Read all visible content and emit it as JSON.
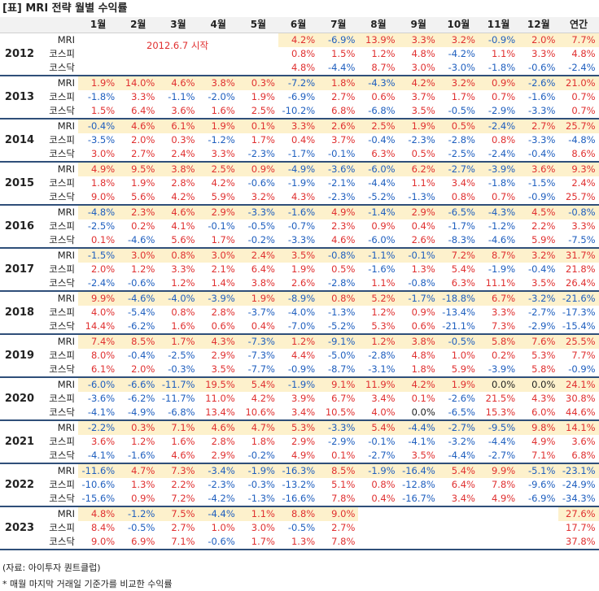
{
  "title": "[표] MRI 전략 월별 수익률",
  "header": [
    "1월",
    "2월",
    "3월",
    "4월",
    "5월",
    "6월",
    "7월",
    "8월",
    "9월",
    "10월",
    "11월",
    "12월",
    "연간"
  ],
  "row_labels": [
    "MRI",
    "코스피",
    "코스닥"
  ],
  "start_note": "2012.6.7 시작",
  "years": [
    {
      "year": "2012",
      "rows": [
        [
          "",
          "",
          "",
          "",
          "",
          "4.2%",
          "-6.9%",
          "13.9%",
          "3.3%",
          "3.2%",
          "-0.9%",
          "2.0%",
          "7.7%"
        ],
        [
          "",
          "",
          "",
          "",
          "",
          "0.8%",
          "1.5%",
          "1.2%",
          "4.8%",
          "-4.2%",
          "1.1%",
          "3.3%",
          "4.8%"
        ],
        [
          "",
          "",
          "",
          "",
          "",
          "4.8%",
          "-4.4%",
          "8.7%",
          "3.0%",
          "-3.0%",
          "-1.8%",
          "-0.6%",
          "-2.4%"
        ]
      ]
    },
    {
      "year": "2013",
      "rows": [
        [
          "1.9%",
          "14.0%",
          "4.6%",
          "3.8%",
          "0.3%",
          "-7.2%",
          "1.8%",
          "-4.3%",
          "4.2%",
          "3.2%",
          "0.9%",
          "-2.6%",
          "21.0%"
        ],
        [
          "-1.8%",
          "3.3%",
          "-1.1%",
          "-2.0%",
          "1.9%",
          "-6.9%",
          "2.7%",
          "0.6%",
          "3.7%",
          "1.7%",
          "0.7%",
          "-1.6%",
          "0.7%"
        ],
        [
          "1.5%",
          "6.4%",
          "3.6%",
          "1.6%",
          "2.5%",
          "-10.2%",
          "6.8%",
          "-6.8%",
          "3.5%",
          "-0.5%",
          "-2.9%",
          "-3.3%",
          "0.7%"
        ]
      ]
    },
    {
      "year": "2014",
      "rows": [
        [
          "-0.4%",
          "4.6%",
          "6.1%",
          "1.9%",
          "0.1%",
          "3.3%",
          "2.6%",
          "2.5%",
          "1.9%",
          "0.5%",
          "-2.4%",
          "2.7%",
          "25.7%"
        ],
        [
          "-3.5%",
          "2.0%",
          "0.3%",
          "-1.2%",
          "1.7%",
          "0.4%",
          "3.7%",
          "-0.4%",
          "-2.3%",
          "-2.8%",
          "0.8%",
          "-3.3%",
          "-4.8%"
        ],
        [
          "3.0%",
          "2.7%",
          "2.4%",
          "3.3%",
          "-2.3%",
          "-1.7%",
          "-0.1%",
          "6.3%",
          "0.5%",
          "-2.5%",
          "-2.4%",
          "-0.4%",
          "8.6%"
        ]
      ]
    },
    {
      "year": "2015",
      "rows": [
        [
          "4.9%",
          "9.5%",
          "3.8%",
          "2.5%",
          "0.9%",
          "-4.9%",
          "-3.6%",
          "-6.0%",
          "6.2%",
          "-2.7%",
          "-3.9%",
          "3.6%",
          "9.3%"
        ],
        [
          "1.8%",
          "1.9%",
          "2.8%",
          "4.2%",
          "-0.6%",
          "-1.9%",
          "-2.1%",
          "-4.4%",
          "1.1%",
          "3.4%",
          "-1.8%",
          "-1.5%",
          "2.4%"
        ],
        [
          "9.0%",
          "5.6%",
          "4.2%",
          "5.9%",
          "3.2%",
          "4.3%",
          "-2.3%",
          "-5.2%",
          "-1.3%",
          "0.8%",
          "0.7%",
          "-0.9%",
          "25.7%"
        ]
      ]
    },
    {
      "year": "2016",
      "rows": [
        [
          "-4.8%",
          "2.3%",
          "4.6%",
          "2.9%",
          "-3.3%",
          "-1.6%",
          "4.9%",
          "-1.4%",
          "2.9%",
          "-6.5%",
          "-4.3%",
          "4.5%",
          "-0.8%"
        ],
        [
          "-2.5%",
          "0.2%",
          "4.1%",
          "-0.1%",
          "-0.5%",
          "-0.7%",
          "2.3%",
          "0.9%",
          "0.4%",
          "-1.7%",
          "-1.2%",
          "2.2%",
          "3.3%"
        ],
        [
          "0.1%",
          "-4.6%",
          "5.6%",
          "1.7%",
          "-0.2%",
          "-3.3%",
          "4.6%",
          "-6.0%",
          "2.6%",
          "-8.3%",
          "-4.6%",
          "5.9%",
          "-7.5%"
        ]
      ]
    },
    {
      "year": "2017",
      "rows": [
        [
          "-1.5%",
          "3.0%",
          "0.8%",
          "3.0%",
          "2.4%",
          "3.5%",
          "-0.8%",
          "-1.1%",
          "-0.1%",
          "7.2%",
          "8.7%",
          "3.2%",
          "31.7%"
        ],
        [
          "2.0%",
          "1.2%",
          "3.3%",
          "2.1%",
          "6.4%",
          "1.9%",
          "0.5%",
          "-1.6%",
          "1.3%",
          "5.4%",
          "-1.9%",
          "-0.4%",
          "21.8%"
        ],
        [
          "-2.4%",
          "-0.6%",
          "1.2%",
          "1.4%",
          "3.8%",
          "2.6%",
          "-2.8%",
          "1.1%",
          "-0.8%",
          "6.3%",
          "11.1%",
          "3.5%",
          "26.4%"
        ]
      ]
    },
    {
      "year": "2018",
      "rows": [
        [
          "9.9%",
          "-4.6%",
          "-4.0%",
          "-3.9%",
          "1.9%",
          "-8.9%",
          "0.8%",
          "5.2%",
          "-1.7%",
          "-18.8%",
          "6.7%",
          "-3.2%",
          "-21.6%"
        ],
        [
          "4.0%",
          "-5.4%",
          "0.8%",
          "2.8%",
          "-3.7%",
          "-4.0%",
          "-1.3%",
          "1.2%",
          "0.9%",
          "-13.4%",
          "3.3%",
          "-2.7%",
          "-17.3%"
        ],
        [
          "14.4%",
          "-6.2%",
          "1.6%",
          "0.6%",
          "0.4%",
          "-7.0%",
          "-5.2%",
          "5.3%",
          "0.6%",
          "-21.1%",
          "7.3%",
          "-2.9%",
          "-15.4%"
        ]
      ]
    },
    {
      "year": "2019",
      "rows": [
        [
          "7.4%",
          "8.5%",
          "1.7%",
          "4.3%",
          "-7.3%",
          "1.2%",
          "-9.1%",
          "1.2%",
          "3.8%",
          "-0.5%",
          "5.8%",
          "7.6%",
          "25.5%"
        ],
        [
          "8.0%",
          "-0.4%",
          "-2.5%",
          "2.9%",
          "-7.3%",
          "4.4%",
          "-5.0%",
          "-2.8%",
          "4.8%",
          "1.0%",
          "0.2%",
          "5.3%",
          "7.7%"
        ],
        [
          "6.1%",
          "2.0%",
          "-0.3%",
          "3.5%",
          "-7.7%",
          "-0.9%",
          "-8.7%",
          "-3.1%",
          "1.8%",
          "5.9%",
          "-3.9%",
          "5.8%",
          "-0.9%"
        ]
      ]
    },
    {
      "year": "2020",
      "rows": [
        [
          "-6.0%",
          "-6.6%",
          "-11.7%",
          "19.5%",
          "5.4%",
          "-1.9%",
          "9.1%",
          "11.9%",
          "4.2%",
          "1.9%",
          "0.0%",
          "0.0%",
          "24.1%"
        ],
        [
          "-3.6%",
          "-6.2%",
          "-11.7%",
          "11.0%",
          "4.2%",
          "3.9%",
          "6.7%",
          "3.4%",
          "0.1%",
          "-2.6%",
          "21.5%",
          "4.3%",
          "30.8%"
        ],
        [
          "-4.1%",
          "-4.9%",
          "-6.8%",
          "13.4%",
          "10.6%",
          "3.4%",
          "10.5%",
          "4.0%",
          "0.0%",
          "-6.5%",
          "15.3%",
          "6.0%",
          "44.6%"
        ]
      ]
    },
    {
      "year": "2021",
      "rows": [
        [
          "-2.2%",
          "0.3%",
          "7.1%",
          "4.6%",
          "4.7%",
          "5.3%",
          "-3.3%",
          "5.4%",
          "-4.4%",
          "-2.7%",
          "-9.5%",
          "9.8%",
          "14.1%"
        ],
        [
          "3.6%",
          "1.2%",
          "1.6%",
          "2.8%",
          "1.8%",
          "2.9%",
          "-2.9%",
          "-0.1%",
          "-4.1%",
          "-3.2%",
          "-4.4%",
          "4.9%",
          "3.6%"
        ],
        [
          "-4.1%",
          "-1.6%",
          "4.6%",
          "2.9%",
          "-0.2%",
          "4.9%",
          "0.1%",
          "-2.7%",
          "3.5%",
          "-4.4%",
          "-2.7%",
          "7.1%",
          "6.8%"
        ]
      ]
    },
    {
      "year": "2022",
      "rows": [
        [
          "-11.6%",
          "4.7%",
          "7.3%",
          "-3.4%",
          "-1.9%",
          "-16.3%",
          "8.5%",
          "-1.9%",
          "-16.4%",
          "5.4%",
          "9.9%",
          "-5.1%",
          "-23.1%"
        ],
        [
          "-10.6%",
          "1.3%",
          "2.2%",
          "-2.3%",
          "-0.3%",
          "-13.2%",
          "5.1%",
          "0.8%",
          "-12.8%",
          "6.4%",
          "7.8%",
          "-9.6%",
          "-24.9%"
        ],
        [
          "-15.6%",
          "0.9%",
          "7.2%",
          "-4.2%",
          "-1.3%",
          "-16.6%",
          "7.8%",
          "0.4%",
          "-16.7%",
          "3.4%",
          "4.9%",
          "-6.9%",
          "-34.3%"
        ]
      ]
    },
    {
      "year": "2023",
      "rows": [
        [
          "4.8%",
          "-1.2%",
          "7.5%",
          "-4.4%",
          "1.1%",
          "8.8%",
          "9.0%",
          "",
          "",
          "",
          "",
          "",
          "27.6%"
        ],
        [
          "8.4%",
          "-0.5%",
          "2.7%",
          "1.0%",
          "3.0%",
          "-0.5%",
          "2.7%",
          "",
          "",
          "",
          "",
          "",
          "17.7%"
        ],
        [
          "9.0%",
          "6.9%",
          "7.1%",
          "-0.6%",
          "1.7%",
          "1.3%",
          "7.8%",
          "",
          "",
          "",
          "",
          "",
          "37.8%"
        ]
      ]
    }
  ],
  "footnote_source": "(자료: 아이투자 퀀트클럽)",
  "footnote_note": "* 매월 마지막 거래일 기준가를 비교한 수익률",
  "colors": {
    "positive": "#e03030",
    "negative": "#1f5fbf",
    "highlight": "#fdf1cc",
    "divider": "#2f4f79"
  }
}
